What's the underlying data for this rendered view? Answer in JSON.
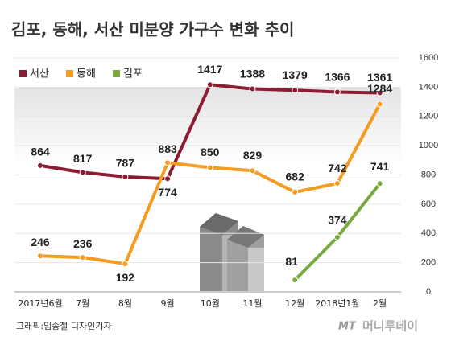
{
  "chart_data": {
    "type": "line",
    "title": "김포, 동해, 서산 미분양 가구수 변화 추이",
    "categories": [
      "2017년6월",
      "7월",
      "8월",
      "9월",
      "10월",
      "11월",
      "12월",
      "2018년1월",
      "2월"
    ],
    "series": [
      {
        "name": "서산",
        "color": "#8c1c33",
        "values": [
          864,
          817,
          787,
          774,
          1417,
          1388,
          1379,
          1366,
          1361
        ]
      },
      {
        "name": "동해",
        "color": "#f39c1f",
        "values": [
          246,
          236,
          192,
          883,
          850,
          829,
          682,
          742,
          1284
        ]
      },
      {
        "name": "김포",
        "color": "#79a93d",
        "values": [
          null,
          null,
          null,
          null,
          null,
          null,
          81,
          374,
          741
        ]
      }
    ],
    "ylim": [
      0,
      1600
    ],
    "yticks": [
      0,
      200,
      400,
      600,
      800,
      1000,
      1200,
      1400,
      1600
    ],
    "grid": true,
    "legend": "top-left",
    "credit": "그래픽:임종철 디자인기자",
    "logo_mark": "MT",
    "logo_text": "머니투데이"
  }
}
